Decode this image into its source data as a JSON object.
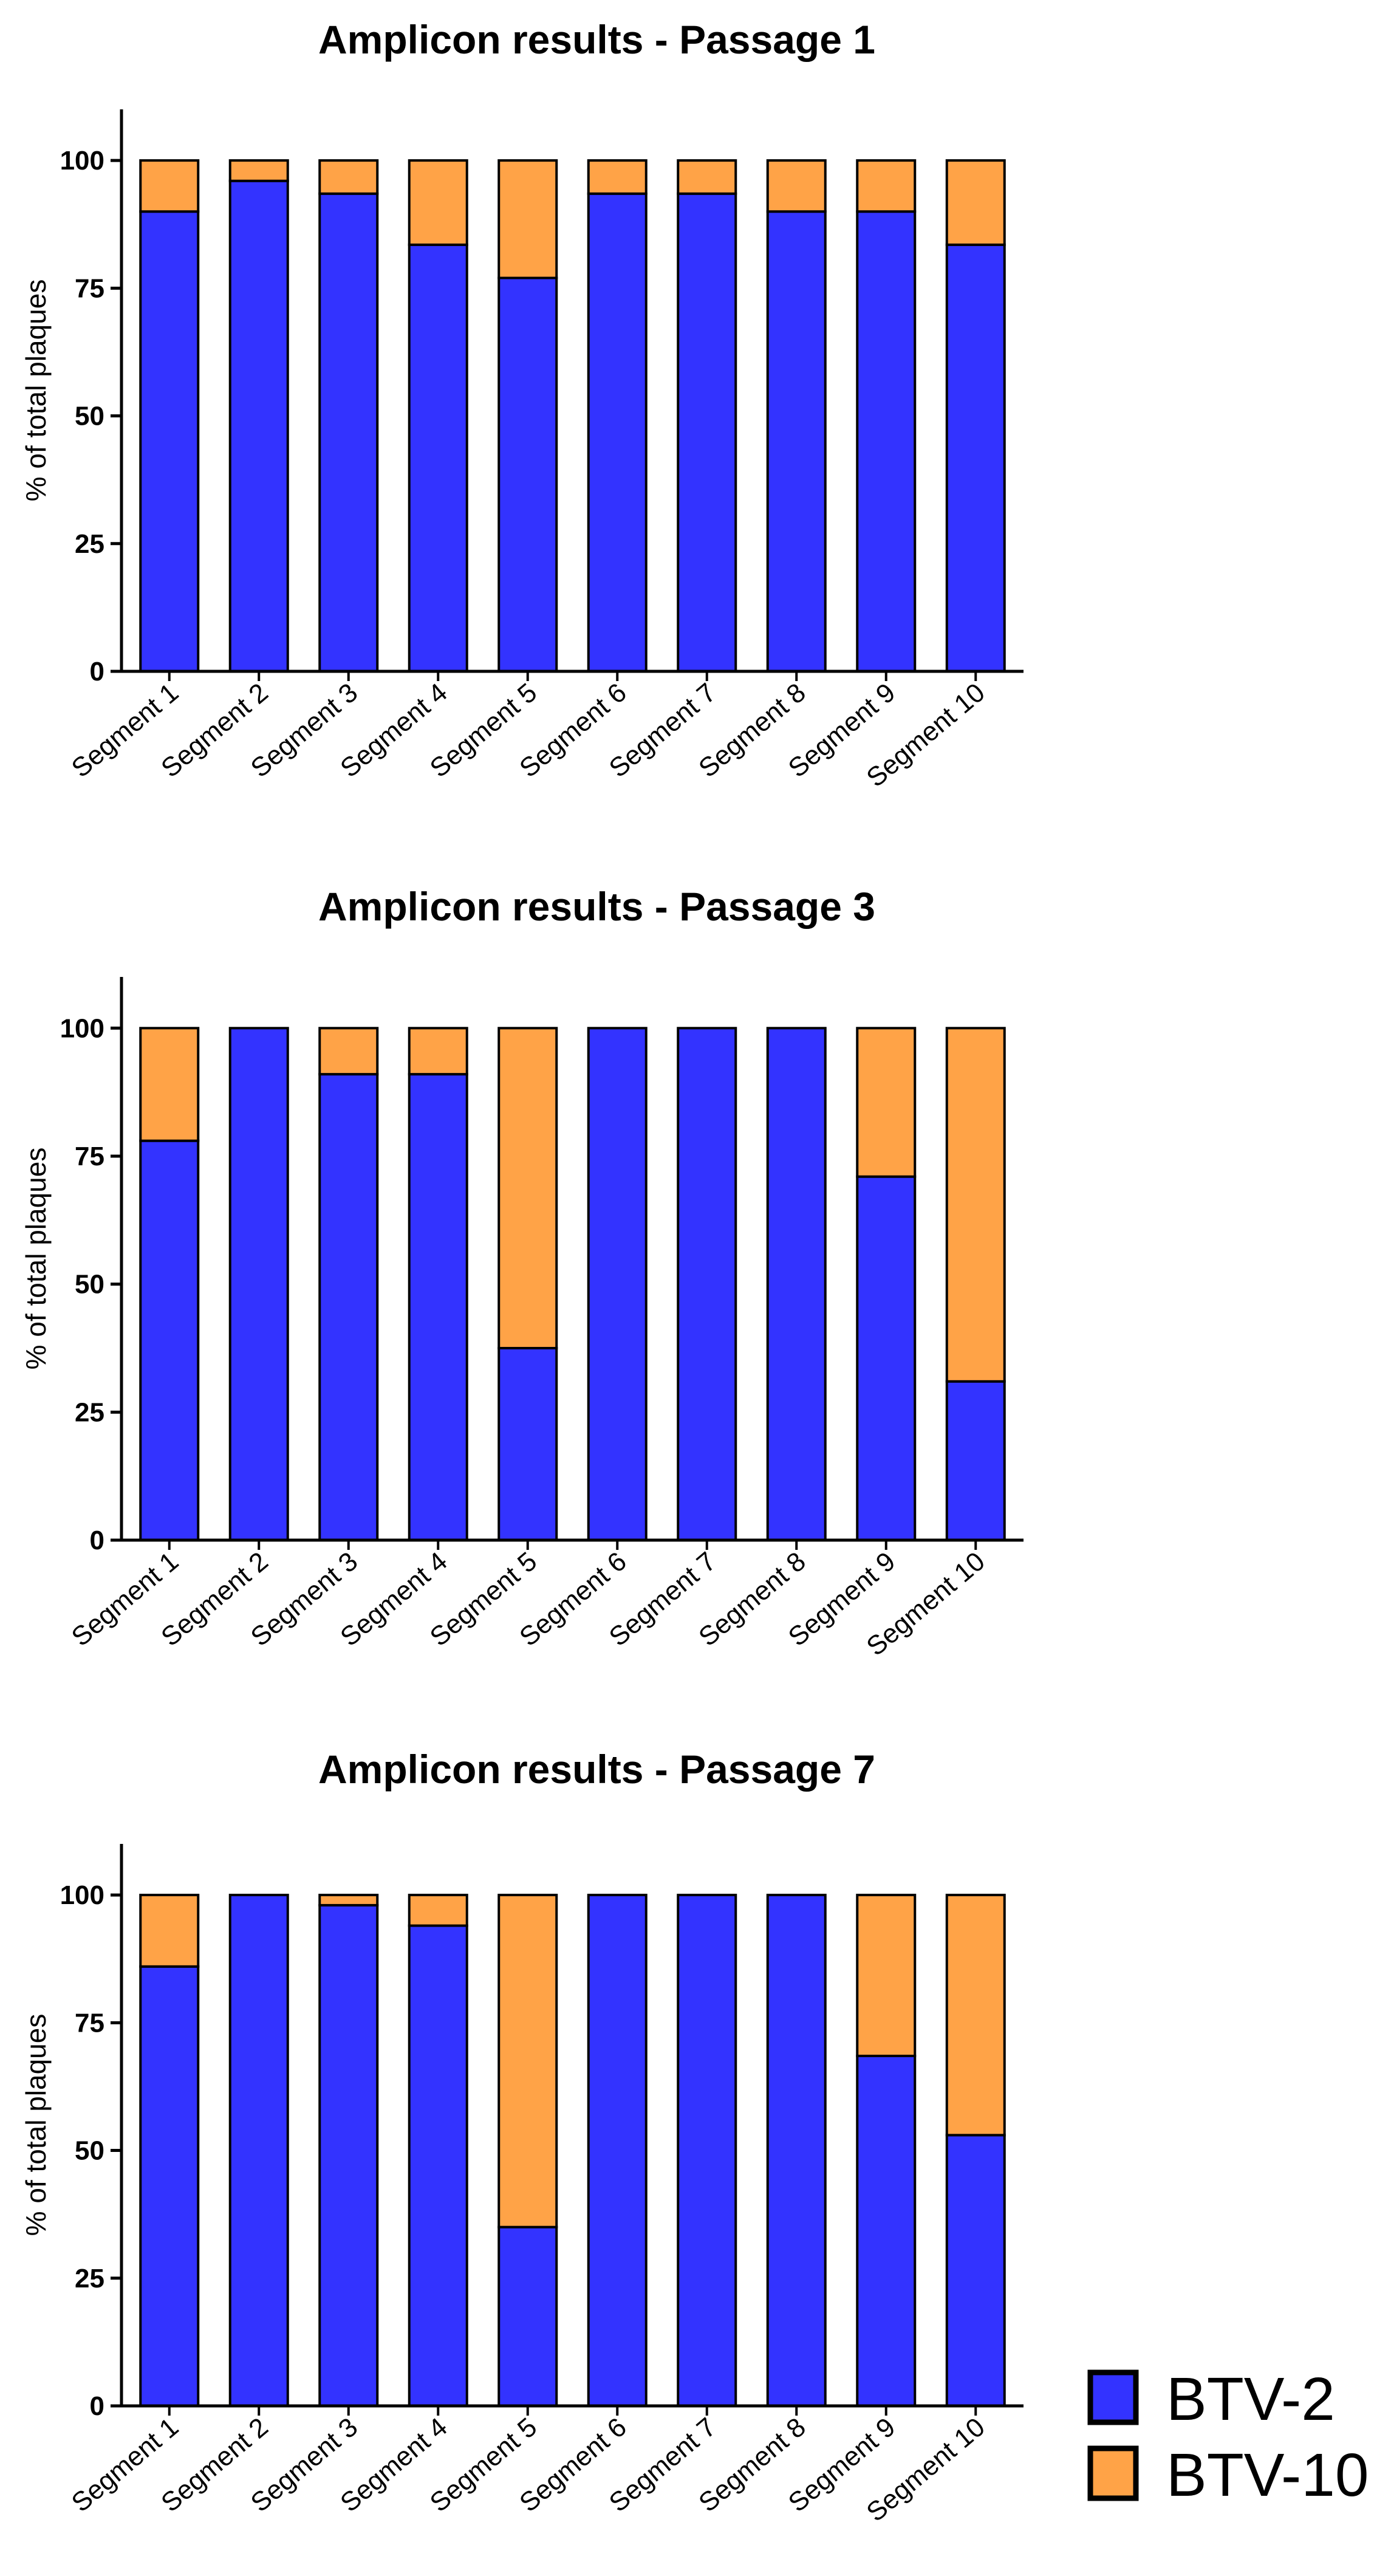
{
  "chart_data": [
    {
      "type": "bar",
      "stacked": true,
      "title": "Amplicon results - Passage 1",
      "xlabel": "",
      "ylabel": "% of total plaques",
      "ylim": [
        0,
        110
      ],
      "yticks": [
        0,
        25,
        50,
        75,
        100
      ],
      "categories": [
        "Segment 1",
        "Segment 2",
        "Segment 3",
        "Segment 4",
        "Segment 5",
        "Segment 6",
        "Segment 7",
        "Segment 8",
        "Segment 9",
        "Segment 10"
      ],
      "series": [
        {
          "name": "BTV-2",
          "values": [
            90,
            96,
            93.5,
            83.5,
            77,
            93.5,
            93.5,
            90,
            90,
            83.5
          ]
        },
        {
          "name": "BTV-10",
          "values": [
            10,
            4,
            6.5,
            16.5,
            23,
            6.5,
            6.5,
            10,
            10,
            16.5
          ]
        }
      ]
    },
    {
      "type": "bar",
      "stacked": true,
      "title": "Amplicon results - Passage 3",
      "xlabel": "",
      "ylabel": "% of total plaques",
      "ylim": [
        0,
        110
      ],
      "yticks": [
        0,
        25,
        50,
        75,
        100
      ],
      "categories": [
        "Segment 1",
        "Segment 2",
        "Segment 3",
        "Segment 4",
        "Segment 5",
        "Segment 6",
        "Segment 7",
        "Segment 8",
        "Segment 9",
        "Segment 10"
      ],
      "series": [
        {
          "name": "BTV-2",
          "values": [
            78,
            100,
            91,
            91,
            37.5,
            100,
            100,
            100,
            71,
            31
          ]
        },
        {
          "name": "BTV-10",
          "values": [
            22,
            0,
            9,
            9,
            62.5,
            0,
            0,
            0,
            29,
            69
          ]
        }
      ]
    },
    {
      "type": "bar",
      "stacked": true,
      "title": "Amplicon results - Passage 7",
      "xlabel": "",
      "ylabel": "% of total plaques",
      "ylim": [
        0,
        110
      ],
      "yticks": [
        0,
        25,
        50,
        75,
        100
      ],
      "categories": [
        "Segment 1",
        "Segment 2",
        "Segment 3",
        "Segment 4",
        "Segment 5",
        "Segment 6",
        "Segment 7",
        "Segment 8",
        "Segment 9",
        "Segment 10"
      ],
      "series": [
        {
          "name": "BTV-2",
          "values": [
            86,
            100,
            98,
            94,
            35,
            100,
            100,
            100,
            68.5,
            53
          ]
        },
        {
          "name": "BTV-10",
          "values": [
            14,
            0,
            2,
            6,
            65,
            0,
            0,
            0,
            31.5,
            47
          ]
        }
      ]
    }
  ],
  "legend": [
    {
      "label": "BTV-2",
      "color": "#3333ff"
    },
    {
      "label": "BTV-10",
      "color": "#ffa347"
    }
  ]
}
